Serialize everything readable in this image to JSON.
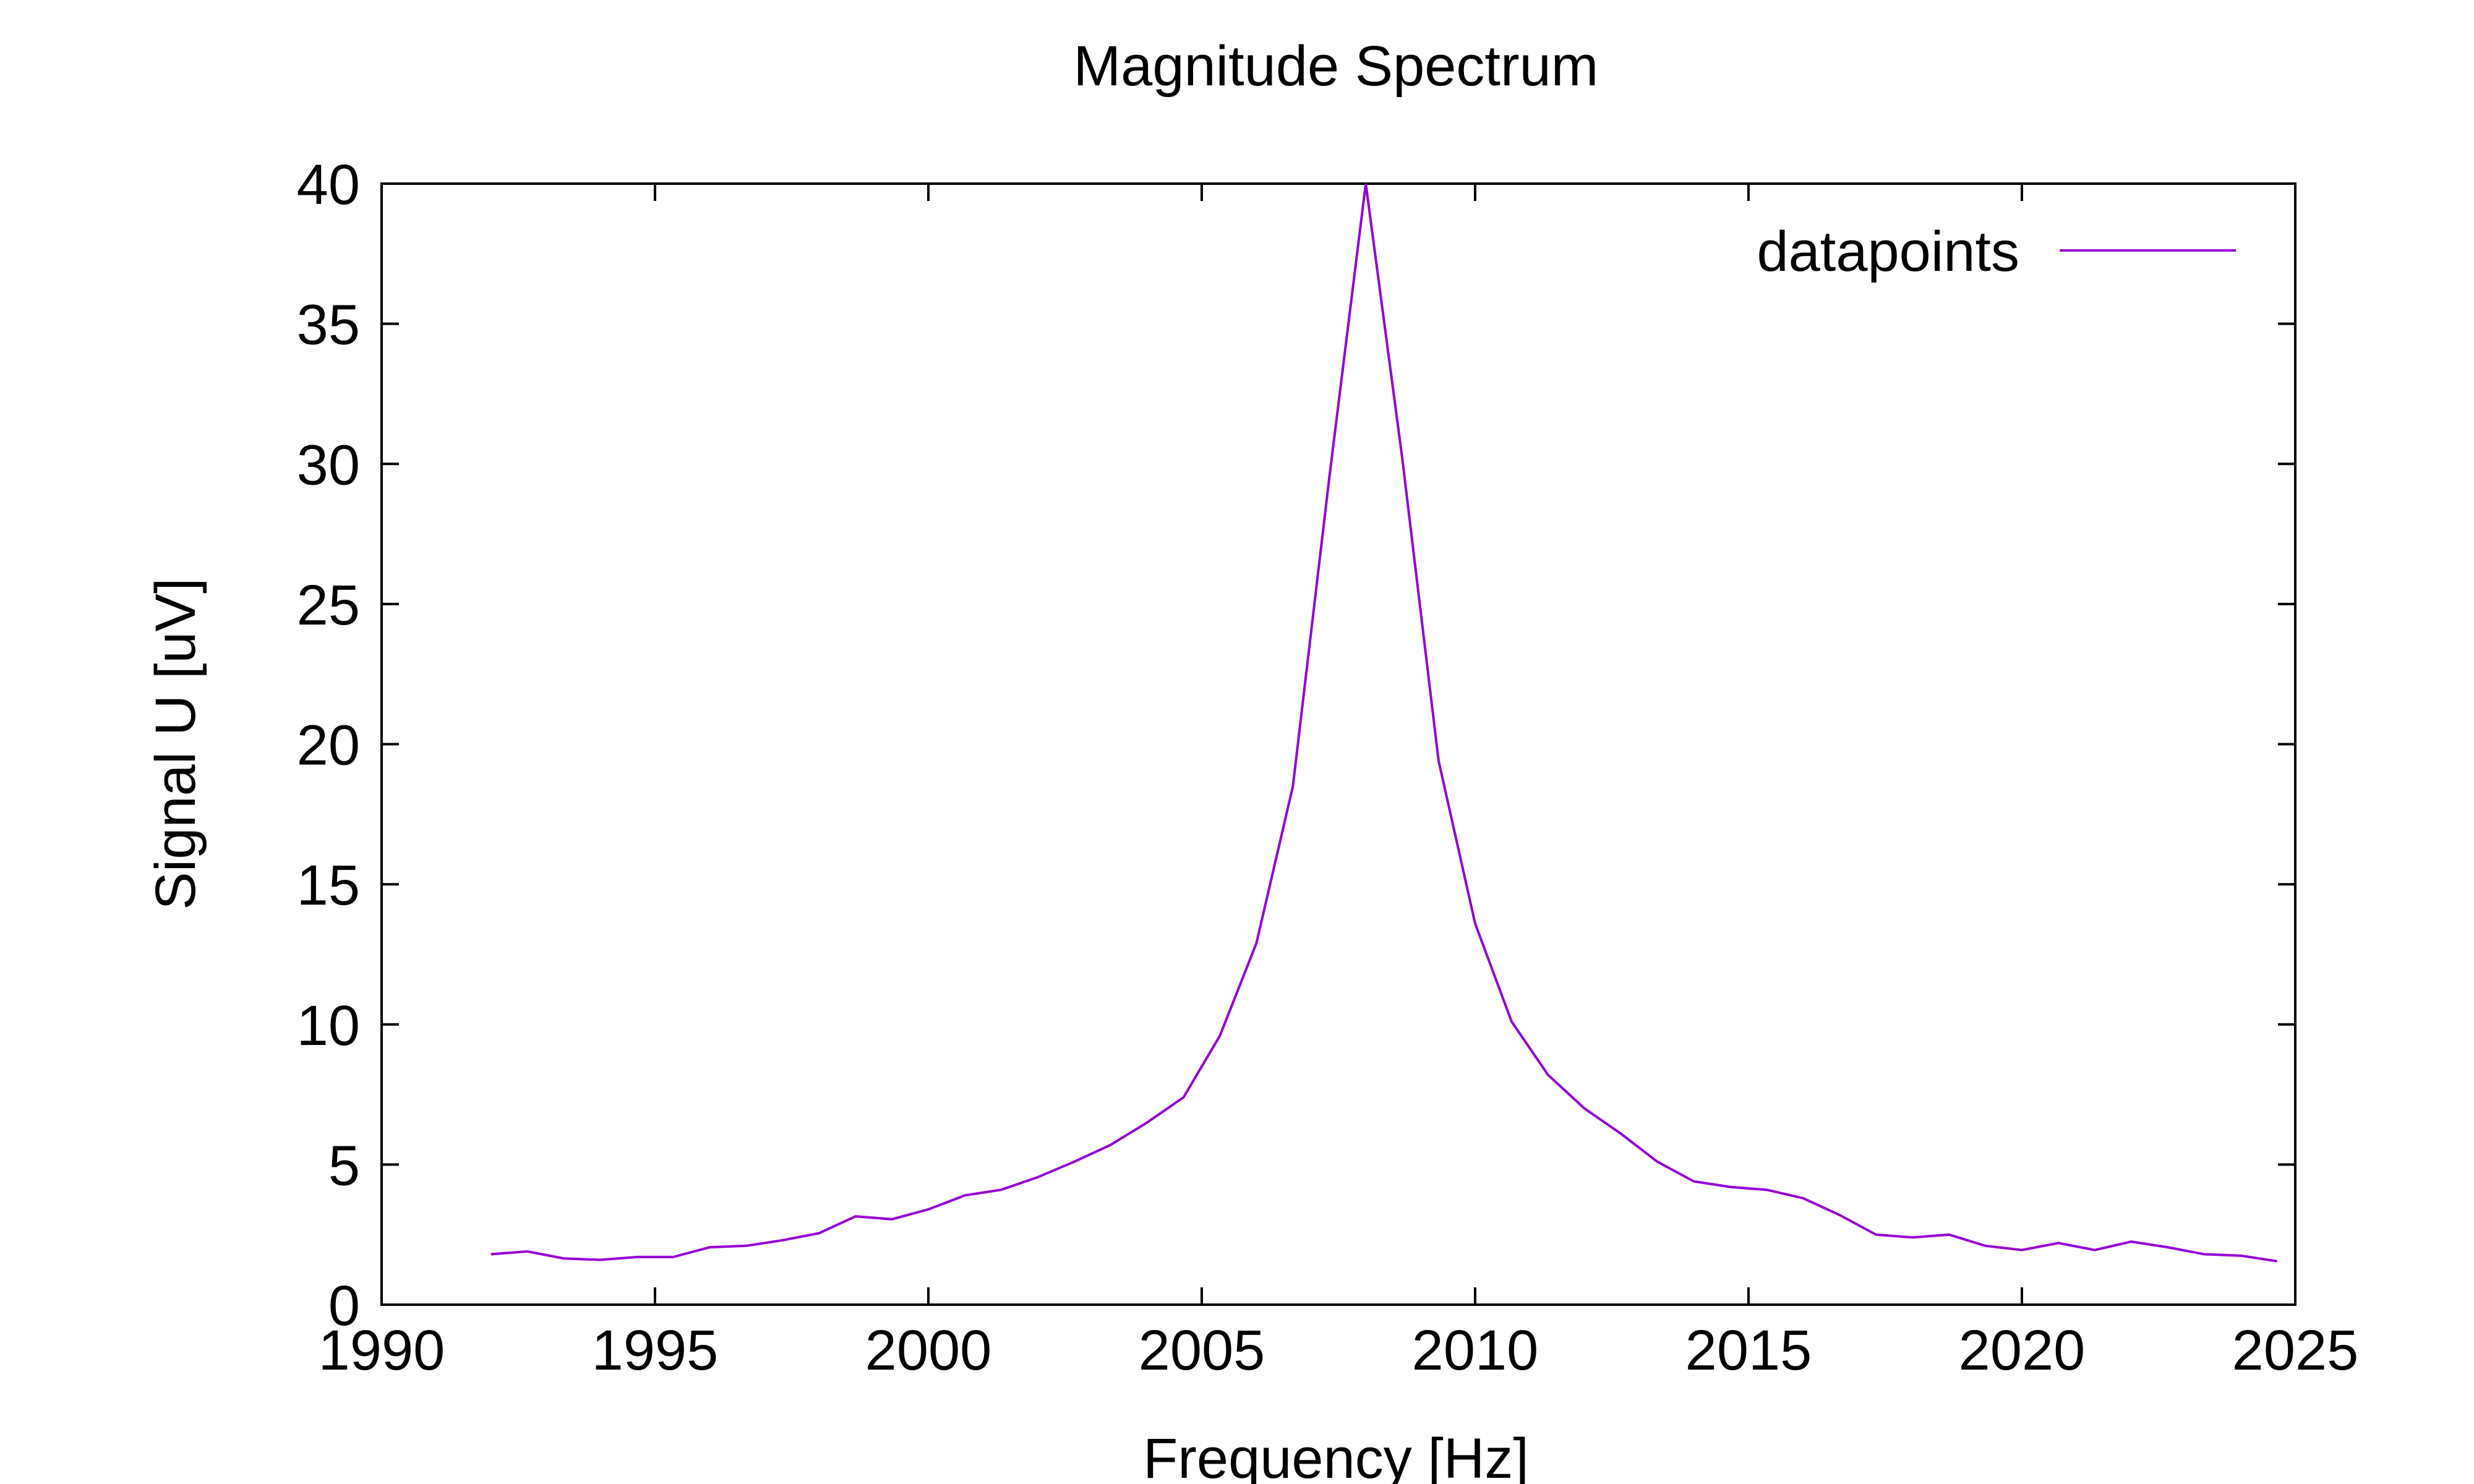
{
  "chart_data": {
    "type": "line",
    "title": "Magnitude Spectrum",
    "xlabel": "Frequency [Hz]",
    "ylabel": "Signal U [uV]",
    "xlim": [
      1990,
      2025
    ],
    "ylim": [
      0,
      40
    ],
    "x_ticks": [
      1990,
      1995,
      2000,
      2005,
      2010,
      2015,
      2020,
      2025
    ],
    "y_ticks": [
      0,
      5,
      10,
      15,
      20,
      25,
      30,
      35,
      40
    ],
    "x_tick_labels": [
      "1990",
      "1995",
      "2000",
      "2005",
      "2010",
      "2015",
      "2020",
      "2025"
    ],
    "y_tick_labels": [
      "0",
      "5",
      "10",
      "15",
      "20",
      "25",
      "30",
      "35",
      "40"
    ],
    "grid": false,
    "legend_position": "top-right",
    "series": [
      {
        "name": "datapoints",
        "color": "#9400d3",
        "x": [
          1992.0,
          1992.667,
          1993.333,
          1994.0,
          1994.667,
          1995.333,
          1996.0,
          1996.667,
          1997.333,
          1998.0,
          1998.667,
          1999.333,
          2000.0,
          2000.667,
          2001.333,
          2002.0,
          2002.667,
          2003.333,
          2004.0,
          2004.667,
          2005.333,
          2006.0,
          2006.667,
          2007.333,
          2008.0,
          2008.667,
          2009.333,
          2010.0,
          2010.667,
          2011.333,
          2012.0,
          2012.667,
          2013.333,
          2014.0,
          2014.667,
          2015.333,
          2016.0,
          2016.667,
          2017.333,
          2018.0,
          2018.667,
          2019.333,
          2020.0,
          2020.667,
          2021.333,
          2022.0,
          2022.667,
          2023.333,
          2024.0,
          2024.667
        ],
        "y": [
          1.8,
          1.9,
          1.65,
          1.6,
          1.7,
          1.7,
          2.05,
          2.1,
          2.3,
          2.55,
          3.15,
          3.05,
          3.4,
          3.9,
          4.1,
          4.55,
          5.1,
          5.7,
          6.5,
          7.4,
          9.6,
          12.9,
          18.5,
          29.5,
          40.0,
          30.2,
          19.4,
          13.6,
          10.1,
          8.2,
          7.0,
          6.1,
          5.1,
          4.4,
          4.2,
          4.1,
          3.8,
          3.2,
          2.5,
          2.4,
          2.5,
          2.1,
          1.95,
          2.2,
          1.95,
          2.25,
          2.05,
          1.8,
          1.75,
          1.55
        ]
      }
    ]
  }
}
